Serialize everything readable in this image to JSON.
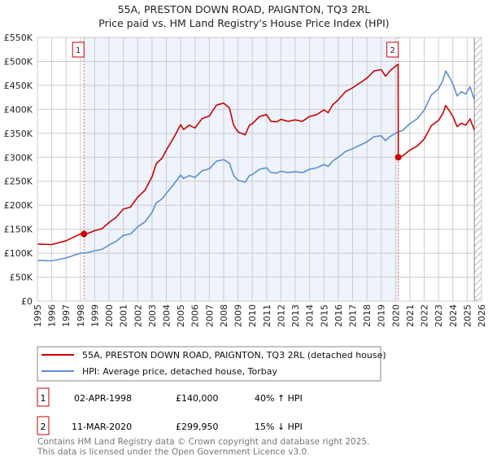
{
  "chart_data": {
    "type": "line",
    "title": "55A, PRESTON DOWN ROAD, PAIGNTON, TQ3 2RL",
    "subtitle": "Price paid vs. HM Land Registry's House Price Index (HPI)",
    "xlim": [
      1995,
      2026
    ],
    "ylim": [
      0,
      550000
    ],
    "x_ticks": [
      "1995",
      "1996",
      "1997",
      "1998",
      "1999",
      "2000",
      "2001",
      "2002",
      "2003",
      "2004",
      "2005",
      "2006",
      "2007",
      "2008",
      "2009",
      "2010",
      "2011",
      "2012",
      "2013",
      "2014",
      "2015",
      "2016",
      "2017",
      "2018",
      "2019",
      "2020",
      "2021",
      "2022",
      "2023",
      "2024",
      "2025",
      "2026"
    ],
    "y_ticks": [
      {
        "v": 0,
        "label": "£0"
      },
      {
        "v": 50,
        "label": "£50K"
      },
      {
        "v": 100,
        "label": "£100K"
      },
      {
        "v": 150,
        "label": "£150K"
      },
      {
        "v": 200,
        "label": "£200K"
      },
      {
        "v": 250,
        "label": "£250K"
      },
      {
        "v": 300,
        "label": "£300K"
      },
      {
        "v": 350,
        "label": "£350K"
      },
      {
        "v": 400,
        "label": "£400K"
      },
      {
        "v": 450,
        "label": "£450K"
      },
      {
        "v": 500,
        "label": "£500K"
      },
      {
        "v": 550,
        "label": "£550K"
      }
    ],
    "y_unit": "thousands GBP",
    "grid": true,
    "shaded_range": [
      1998.25,
      2020.19
    ],
    "hatched_from": 2025.5,
    "series": [
      {
        "name": "55A, PRESTON DOWN ROAD, PAIGNTON, TQ3 2RL (detached house)",
        "color": "#cc0000",
        "x": [
          1995,
          1996,
          1997,
          1997.5,
          1998,
          1998.5,
          1999,
          1999.5,
          2000,
          2000.5,
          2001,
          2001.5,
          2002,
          2002.5,
          2003,
          2003.3,
          2003.7,
          2004,
          2004.5,
          2005,
          2005.2,
          2005.6,
          2006,
          2006.5,
          2007,
          2007.5,
          2008,
          2008.4,
          2008.7,
          2009,
          2009.5,
          2009.8,
          2010,
          2010.5,
          2011,
          2011.3,
          2011.7,
          2012,
          2012.5,
          2013,
          2013.5,
          2014,
          2014.5,
          2015,
          2015.3,
          2015.6,
          2016,
          2016.5,
          2017,
          2017.5,
          2018,
          2018.5,
          2019,
          2019.3,
          2019.6,
          2020,
          2020.18,
          2020.19,
          2020.5,
          2021,
          2021.5,
          2022,
          2022.5,
          2023,
          2023.3,
          2023.5,
          2023.8,
          2024,
          2024.3,
          2024.6,
          2024.9,
          2025.2,
          2025.5
        ],
        "values": [
          119,
          118,
          126,
          133,
          140,
          141,
          147,
          151,
          164,
          175,
          192,
          196,
          217,
          231,
          259,
          287,
          298,
          315,
          340,
          368,
          358,
          367,
          361,
          381,
          386,
          409,
          413,
          403,
          367,
          353,
          347,
          367,
          370,
          385,
          389,
          375,
          374,
          379,
          375,
          378,
          375,
          385,
          389,
          399,
          393,
          409,
          420,
          437,
          445,
          455,
          465,
          480,
          483,
          469,
          480,
          490,
          494,
          300,
          303,
          315,
          323,
          338,
          366,
          377,
          391,
          408,
          395,
          385,
          364,
          371,
          367,
          380,
          357
        ]
      },
      {
        "name": "HPI: Average price, detached house, Torbay",
        "color": "#5b8fd4",
        "x": [
          1995,
          1996,
          1997,
          1997.5,
          1998,
          1998.5,
          1999,
          1999.5,
          2000,
          2000.5,
          2001,
          2001.5,
          2002,
          2002.5,
          2003,
          2003.3,
          2003.7,
          2004,
          2004.5,
          2005,
          2005.2,
          2005.6,
          2006,
          2006.5,
          2007,
          2007.5,
          2008,
          2008.4,
          2008.7,
          2009,
          2009.5,
          2009.8,
          2010,
          2010.5,
          2011,
          2011.3,
          2011.7,
          2012,
          2012.5,
          2013,
          2013.5,
          2014,
          2014.5,
          2015,
          2015.3,
          2015.6,
          2016,
          2016.5,
          2017,
          2017.5,
          2018,
          2018.5,
          2019,
          2019.3,
          2019.6,
          2020,
          2020.19,
          2020.5,
          2021,
          2021.5,
          2022,
          2022.5,
          2023,
          2023.3,
          2023.5,
          2023.8,
          2024,
          2024.3,
          2024.6,
          2024.9,
          2025.2,
          2025.5
        ],
        "values": [
          85,
          84,
          90,
          95,
          100,
          101,
          105,
          108,
          117,
          125,
          137,
          140,
          155,
          165,
          185,
          205,
          213,
          225,
          243,
          263,
          256,
          262,
          258,
          272,
          276,
          292,
          295,
          288,
          262,
          252,
          248,
          262,
          264,
          275,
          278,
          268,
          267,
          271,
          268,
          270,
          268,
          275,
          278,
          285,
          281,
          292,
          300,
          312,
          318,
          325,
          332,
          343,
          345,
          335,
          343,
          350,
          353,
          356,
          370,
          380,
          398,
          430,
          443,
          460,
          480,
          465,
          453,
          428,
          437,
          432,
          447,
          420
        ]
      }
    ],
    "sales": [
      {
        "label": "1",
        "x": 1998.25,
        "value": 140,
        "date": "02-APR-1998",
        "price": "£140,000",
        "hpi_diff": "40% ↑ HPI"
      },
      {
        "label": "2",
        "x": 2020.19,
        "value": 299.95,
        "date": "11-MAR-2020",
        "price": "£299,950",
        "hpi_diff": "15% ↓ HPI"
      }
    ]
  },
  "footer": {
    "line1": "Contains HM Land Registry data © Crown copyright and database right 2025.",
    "line2": "This data is licensed under the Open Government Licence v3.0."
  }
}
